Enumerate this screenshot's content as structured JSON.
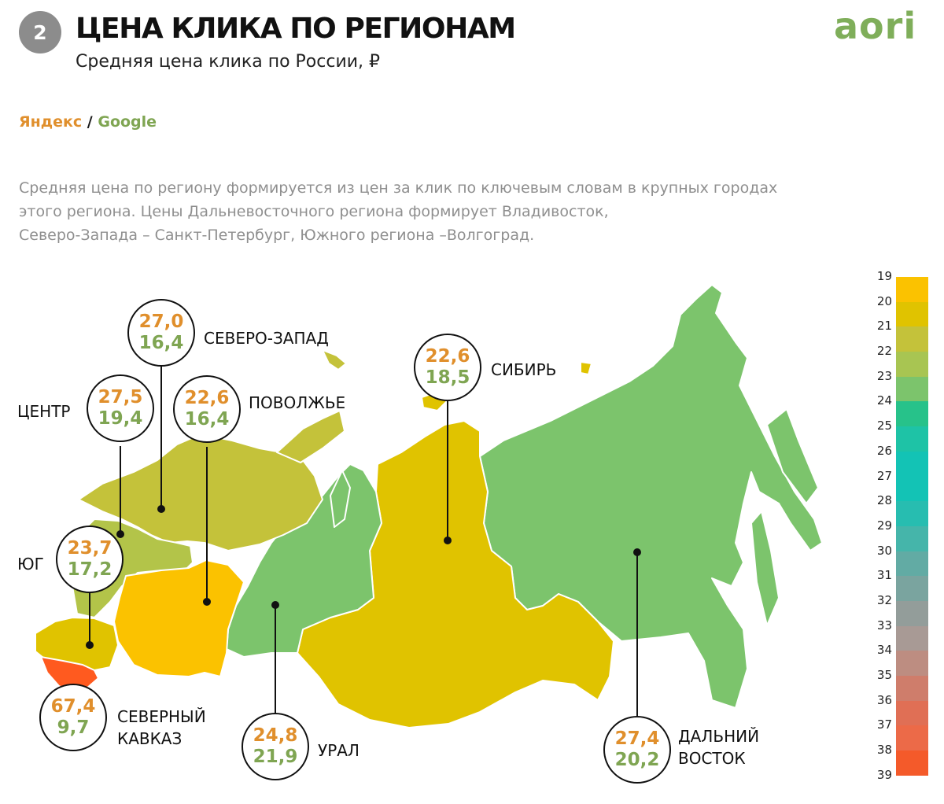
{
  "header": {
    "badge": "2",
    "title": "ЦЕНА КЛИКА ПО РЕГИОНАМ",
    "subtitle": "Средняя цена клика по России, ₽",
    "logo": "aori"
  },
  "legend": {
    "yandex": "Яндекс",
    "separator": "/",
    "google": "Google",
    "yandex_color": "#e08f2c",
    "google_color": "#7fa552"
  },
  "description": [
    "Средняя цена по региону формируется из цен за клик по ключевым словам в крупных городах",
    "этого региона. Цены Дальневосточного региона формирует Владивосток,",
    "Северо-Запада – Санкт-Петербург, Южного региона –Волгоград."
  ],
  "regions": {
    "north_west": {
      "name": "СЕВЕРО-ЗАПАД",
      "yandex": "27,0",
      "google": "16,4",
      "fill": "#c4c23a"
    },
    "center": {
      "name": "ЦЕНТР",
      "yandex": "27,5",
      "google": "19,4",
      "fill": "#b3c449"
    },
    "volga": {
      "name": "ПОВОЛЖЬЕ",
      "yandex": "22,6",
      "google": "16,4",
      "fill": "#fbc200"
    },
    "south": {
      "name": "ЮГ",
      "yandex": "23,7",
      "google": "17,2",
      "fill": "#e0c300"
    },
    "north_caucasus": {
      "name_line1": "СЕВЕРНЫЙ",
      "name_line2": "КАВКАЗ",
      "yandex": "67,4",
      "google": "9,7",
      "fill": "#ff5a1f"
    },
    "ural": {
      "name": "УРАЛ",
      "yandex": "24,8",
      "google": "21,9",
      "fill": "#7cc46c"
    },
    "siberia": {
      "name": "СИБИРЬ",
      "yandex": "22,6",
      "google": "18,5",
      "fill": "#e0c300"
    },
    "far_east": {
      "name_line1": "ДАЛЬНИЙ",
      "name_line2": "ВОСТОК",
      "yandex": "27,4",
      "google": "20,2",
      "fill": "#7cc46c"
    }
  },
  "scale": {
    "labels": [
      "19",
      "20",
      "21",
      "22",
      "23",
      "24",
      "25",
      "26",
      "27",
      "28",
      "29",
      "30",
      "31",
      "32",
      "33",
      "34",
      "35",
      "36",
      "37",
      "38",
      "39"
    ],
    "colors": [
      "#fbc200",
      "#e0c300",
      "#c4c23a",
      "#a8c552",
      "#7cc46c",
      "#27c28a",
      "#1ec3a6",
      "#13c3b5",
      "#13c3b5",
      "#27bdb0",
      "#45b5aa",
      "#62aba4",
      "#7aa49f",
      "#939d9a",
      "#a89a95",
      "#bd8d81",
      "#cf7d6b",
      "#e06f55",
      "#ec6a48",
      "#f45a2a"
    ]
  }
}
